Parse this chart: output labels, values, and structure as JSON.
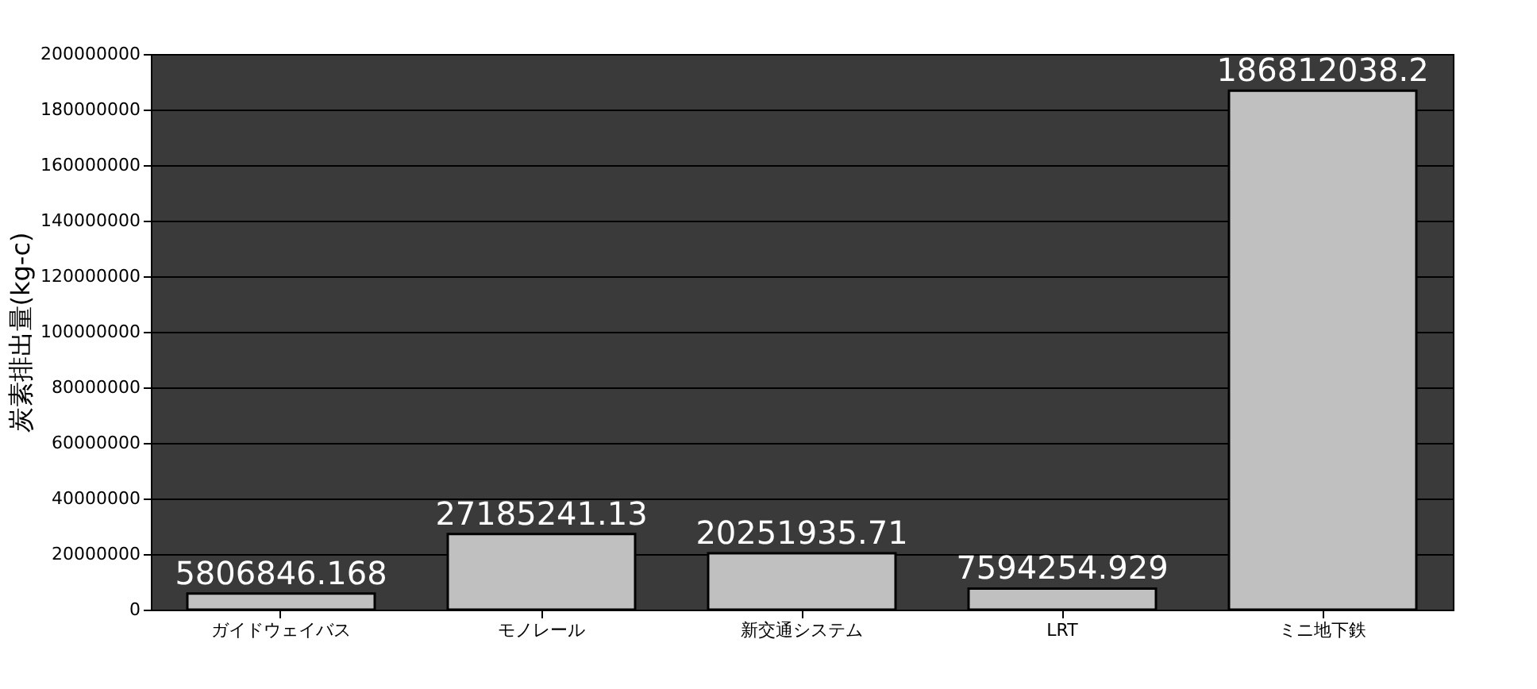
{
  "chart_data": {
    "type": "bar",
    "ylabel": "炭素排出量(kg-c)",
    "categories": [
      "ガイドウェイバス",
      "モノレール",
      "新交通システム",
      "LRT",
      "ミニ地下鉄"
    ],
    "values": [
      5806846.168,
      27185241.13,
      20251935.71,
      7594254.929,
      186812038.2
    ],
    "value_labels": [
      "5806846.168",
      "27185241.13",
      "20251935.71",
      "7594254.929",
      "186812038.2"
    ],
    "color": "#c0c0c0",
    "ylim": [
      0,
      200000000
    ],
    "yticks": [
      0,
      20000000,
      40000000,
      60000000,
      80000000,
      100000000,
      120000000,
      140000000,
      160000000,
      180000000,
      200000000
    ],
    "grid": "y"
  }
}
